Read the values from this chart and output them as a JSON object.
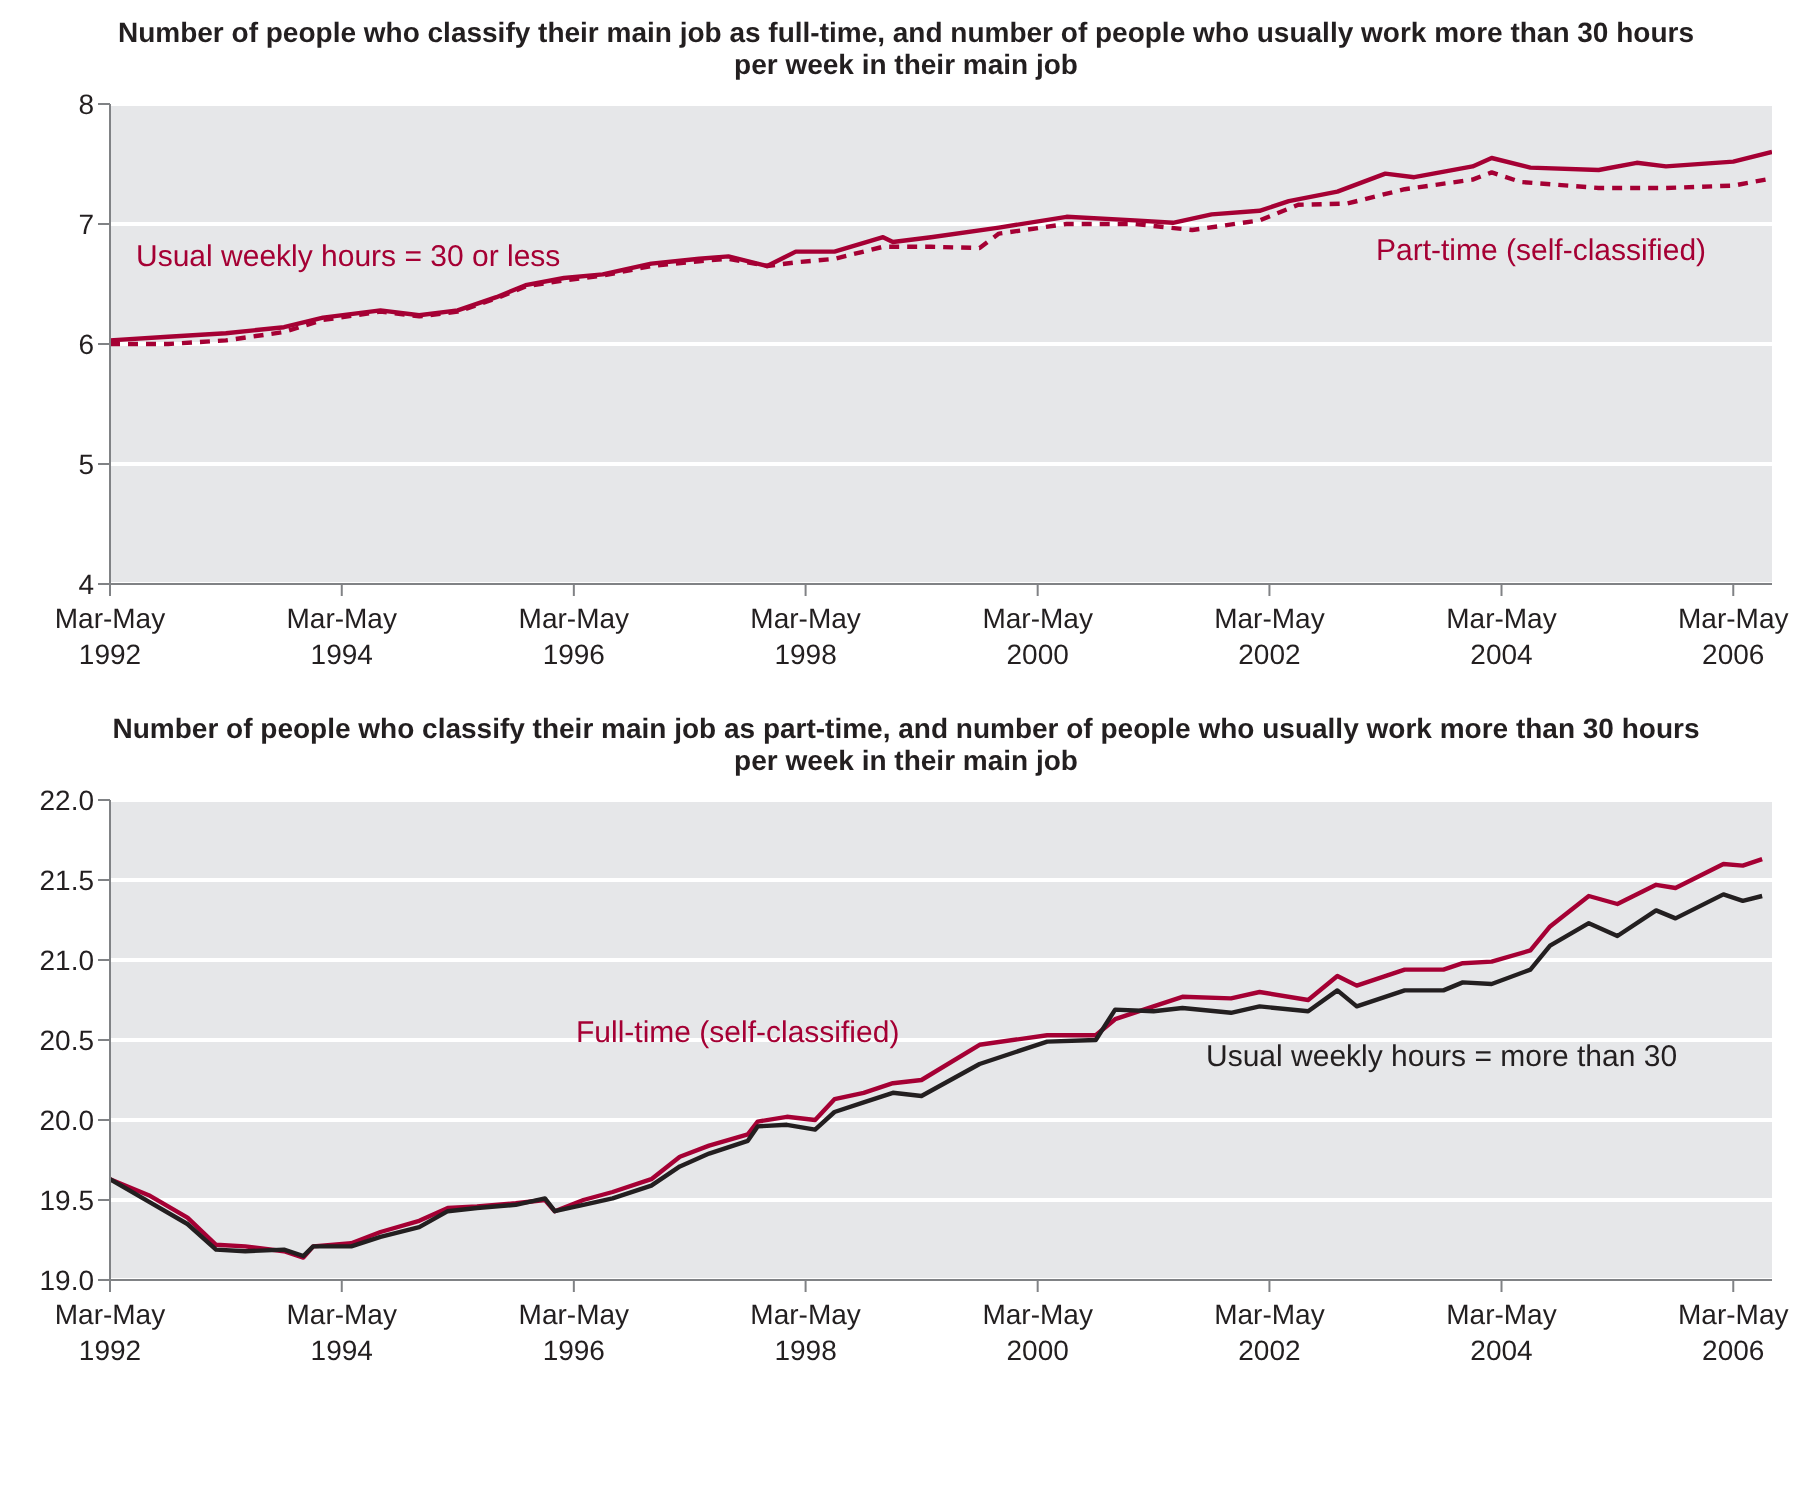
{
  "chart_data": [
    {
      "type": "line",
      "title": "Number of people who classify their main job as full-time, and number of people who usually work more than 30 hours per week in their main job",
      "xlim": [
        "1992-04",
        "2006-08"
      ],
      "xticks": [
        {
          "value": "1992-04",
          "label": "Mar-May 1992"
        },
        {
          "value": "1994-04",
          "label": "Mar-May 1994"
        },
        {
          "value": "1996-04",
          "label": "Mar-May 1996"
        },
        {
          "value": "1998-04",
          "label": "Mar-May 1998"
        },
        {
          "value": "2000-04",
          "label": "Mar-May 2000"
        },
        {
          "value": "2002-04",
          "label": "Mar-May 2002"
        },
        {
          "value": "2004-04",
          "label": "Mar-May 2004"
        },
        {
          "value": "2006-04",
          "label": "Mar-May 2006"
        }
      ],
      "ylim": [
        4,
        8
      ],
      "yticks": [
        4,
        5,
        6,
        7,
        8
      ],
      "grid": "y",
      "legend": false,
      "marker": "none",
      "series": [
        {
          "name": "Usual weekly hours = 30 or less",
          "color": "#a50034",
          "line_style": "solid",
          "x": [
            "1992-04",
            "1992-10",
            "1993-04",
            "1993-10",
            "1994-02",
            "1994-08",
            "1994-12",
            "1995-04",
            "1995-08",
            "1995-11",
            "1996-03",
            "1996-07",
            "1996-12",
            "1997-05",
            "1997-08",
            "1997-12",
            "1998-03",
            "1998-07",
            "1998-12",
            "1999-01",
            "1999-05",
            "1999-12",
            "2000-07",
            "2001-02",
            "2001-06",
            "2001-10",
            "2002-03",
            "2002-06",
            "2002-11",
            "2003-04",
            "2003-07",
            "2004-01",
            "2004-03",
            "2004-07",
            "2005-02",
            "2005-06",
            "2005-09",
            "2006-04",
            "2006-08"
          ],
          "values": [
            6.03,
            6.06,
            6.09,
            6.14,
            6.22,
            6.28,
            6.24,
            6.28,
            6.39,
            6.49,
            6.55,
            6.58,
            6.67,
            6.71,
            6.73,
            6.65,
            6.77,
            6.77,
            6.89,
            6.85,
            6.89,
            6.97,
            7.06,
            7.03,
            7.01,
            7.08,
            7.11,
            7.19,
            7.27,
            7.42,
            7.39,
            7.48,
            7.55,
            7.47,
            7.45,
            7.51,
            7.48,
            7.52,
            7.6
          ]
        },
        {
          "name": "Part-time (self-classified)",
          "color": "#a50034",
          "line_style": "dashed",
          "x": [
            "1992-04",
            "1992-10",
            "1993-04",
            "1993-10",
            "1994-02",
            "1994-08",
            "1994-12",
            "1995-04",
            "1995-08",
            "1995-11",
            "1996-03",
            "1996-07",
            "1996-12",
            "1997-05",
            "1997-08",
            "1997-12",
            "1998-03",
            "1998-07",
            "1998-12",
            "1999-05",
            "1999-10",
            "1999-12",
            "2000-07",
            "2001-02",
            "2001-08",
            "2002-03",
            "2002-07",
            "2002-12",
            "2003-06",
            "2004-01",
            "2004-03",
            "2004-06",
            "2005-02",
            "2005-09",
            "2006-04",
            "2006-08"
          ],
          "values": [
            6.0,
            6.0,
            6.03,
            6.1,
            6.2,
            6.27,
            6.23,
            6.27,
            6.38,
            6.48,
            6.53,
            6.57,
            6.65,
            6.69,
            6.71,
            6.65,
            6.68,
            6.71,
            6.81,
            6.81,
            6.8,
            6.92,
            7.0,
            7.0,
            6.95,
            7.03,
            7.16,
            7.17,
            7.29,
            7.37,
            7.43,
            7.35,
            7.3,
            7.3,
            7.32,
            7.38
          ]
        }
      ]
    },
    {
      "type": "line",
      "title": "Number of people who classify their main job as part-time, and number of people who usually work more than 30 hours per week in their main job",
      "xlim": [
        "1992-04",
        "2006-08"
      ],
      "xticks": [
        {
          "value": "1992-04",
          "label": "Mar-May 1992"
        },
        {
          "value": "1994-04",
          "label": "Mar-May 1994"
        },
        {
          "value": "1996-04",
          "label": "Mar-May 1996"
        },
        {
          "value": "1998-04",
          "label": "Mar-May 1998"
        },
        {
          "value": "2000-04",
          "label": "Mar-May 2000"
        },
        {
          "value": "2002-04",
          "label": "Mar-May 2002"
        },
        {
          "value": "2004-04",
          "label": "Mar-May 2004"
        },
        {
          "value": "2006-04",
          "label": "Mar-May 2006"
        }
      ],
      "ylim": [
        19,
        22
      ],
      "yticks": [
        {
          "value": 19,
          "label": "19.0"
        },
        {
          "value": 19.5,
          "label": "19.5"
        },
        {
          "value": 20,
          "label": "20.0"
        },
        {
          "value": 20.5,
          "label": "20.5"
        },
        {
          "value": 21,
          "label": "21.0"
        },
        {
          "value": 21.5,
          "label": "21.5"
        },
        {
          "value": 22,
          "label": "22.0"
        }
      ],
      "grid": "y",
      "legend": false,
      "marker": "none",
      "x": [
        "1992-04",
        "1992-08",
        "1992-12",
        "1993-03",
        "1993-06",
        "1993-10",
        "1993-12",
        "1994-01",
        "1994-05",
        "1994-08",
        "1994-12",
        "1995-03",
        "1995-06",
        "1995-10",
        "1996-01",
        "1996-02",
        "1996-05",
        "1996-08",
        "1996-12",
        "1997-03",
        "1997-06",
        "1997-10",
        "1997-11",
        "1998-02",
        "1998-05",
        "1998-07",
        "1998-10",
        "1999-01",
        "1999-04",
        "1999-10",
        "2000-05",
        "2000-10",
        "2000-12",
        "2001-04",
        "2001-07",
        "2001-12",
        "2002-03",
        "2002-08",
        "2002-11",
        "2003-01",
        "2003-06",
        "2003-10",
        "2003-12",
        "2004-03",
        "2004-07",
        "2004-09",
        "2005-01",
        "2005-04",
        "2005-08",
        "2005-10",
        "2006-03",
        "2006-05",
        "2006-07"
      ],
      "series": [
        {
          "name": "Full-time (self-classified)",
          "color": "#a50034",
          "line_style": "solid",
          "values": [
            19.63,
            19.53,
            19.39,
            19.22,
            19.21,
            19.18,
            19.14,
            19.21,
            19.23,
            19.3,
            19.37,
            19.45,
            19.46,
            19.48,
            19.5,
            19.43,
            19.5,
            19.55,
            19.63,
            19.77,
            19.84,
            19.91,
            19.99,
            20.02,
            20.0,
            20.13,
            20.17,
            20.23,
            20.25,
            20.47,
            20.53,
            20.53,
            20.63,
            20.71,
            20.77,
            20.76,
            20.8,
            20.75,
            20.9,
            20.84,
            20.94,
            20.94,
            20.98,
            20.99,
            21.06,
            21.21,
            21.4,
            21.35,
            21.47,
            21.45,
            21.6,
            21.59,
            21.63
          ]
        },
        {
          "name": "Usual weekly hours = more than 30",
          "color": "#231f20",
          "line_style": "solid",
          "values": [
            19.63,
            19.49,
            19.35,
            19.19,
            19.18,
            19.19,
            19.15,
            19.21,
            19.21,
            19.27,
            19.33,
            19.43,
            19.45,
            19.47,
            19.51,
            19.43,
            19.47,
            19.51,
            19.59,
            19.71,
            19.79,
            19.87,
            19.96,
            19.97,
            19.94,
            20.05,
            20.11,
            20.17,
            20.15,
            20.35,
            20.49,
            20.5,
            20.69,
            20.68,
            20.7,
            20.67,
            20.71,
            20.68,
            20.81,
            20.71,
            20.81,
            20.81,
            20.86,
            20.85,
            20.94,
            21.09,
            21.23,
            21.15,
            21.31,
            21.26,
            21.41,
            21.37,
            21.4
          ]
        }
      ]
    }
  ]
}
